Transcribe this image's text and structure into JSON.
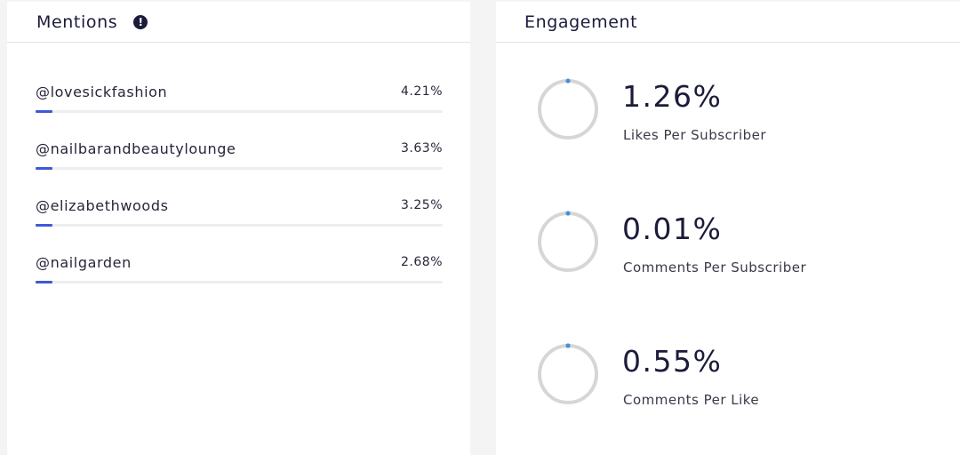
{
  "mentions": {
    "title": "Mentions",
    "items": [
      {
        "handle": "@lovesickfashion",
        "percent": "4.21%",
        "value": 4.21
      },
      {
        "handle": "@nailbarandbeautylounge",
        "percent": "3.63%",
        "value": 3.63
      },
      {
        "handle": "@elizabethwoods",
        "percent": "3.25%",
        "value": 3.25
      },
      {
        "handle": "@nailgarden",
        "percent": "2.68%",
        "value": 2.68
      }
    ]
  },
  "engagement": {
    "title": "Engagement",
    "metrics": [
      {
        "value": "1.26%",
        "label": "Likes Per Subscriber"
      },
      {
        "value": "0.01%",
        "label": "Comments Per Subscriber"
      },
      {
        "value": "0.55%",
        "label": "Comments Per Like"
      }
    ]
  },
  "colors": {
    "accent": "#3d5ad6",
    "ring_track": "#d6d6d8",
    "ring_progress": "#4a90d9",
    "title_text": "#1b1b3a"
  },
  "icons": {
    "info": "info-icon"
  }
}
